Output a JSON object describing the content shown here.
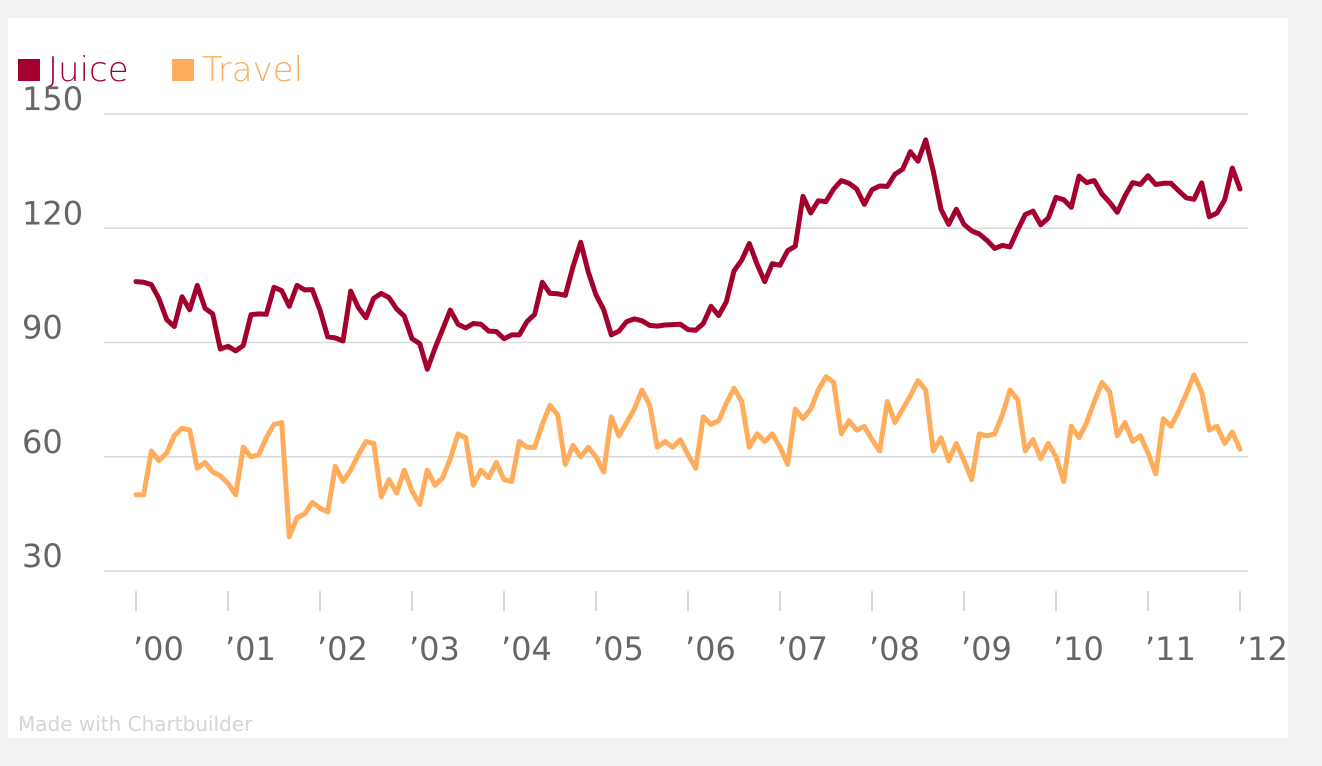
{
  "credit": "Made with Chartbuilder",
  "chart_data": {
    "type": "line",
    "x_start": "2000-01",
    "x_end": "2012-01",
    "ylim": [
      30,
      150
    ],
    "yticks": [
      30,
      60,
      90,
      120,
      150
    ],
    "xticks": [
      "’00",
      "’01",
      "’02",
      "’03",
      "’04",
      "’05",
      "’06",
      "’07",
      "’08",
      "’09",
      "’10",
      "’11",
      "’12"
    ],
    "legend": "top-left",
    "grid": true,
    "series": [
      {
        "name": "Juice",
        "color": "#a3002d",
        "values": [
          106,
          105.8,
          105.2,
          101.5,
          96,
          94.2,
          102,
          98.6,
          105,
          99,
          97.5,
          88.3,
          89,
          87.8,
          89.2,
          97.3,
          97.5,
          97.4,
          104.5,
          103.6,
          99.5,
          105,
          103.8,
          103.9,
          98.5,
          91.5,
          91.2,
          90.4,
          103.5,
          99.2,
          96.5,
          101.6,
          102.9,
          101.8,
          98.8,
          96.9,
          91,
          89.7,
          83,
          88.5,
          93.5,
          98.5,
          94.8,
          93.8,
          95,
          94.8,
          93,
          92.9,
          91,
          92,
          92,
          95.5,
          97.4,
          105.8,
          102.9,
          102.8,
          102.4,
          109.9,
          116.3,
          108.5,
          102.5,
          98.6,
          92,
          93,
          95.5,
          96.2,
          95.7,
          94.5,
          94.3,
          94.6,
          94.7,
          94.8,
          93.4,
          93.2,
          95,
          99.5,
          97.1,
          100.7,
          108.8,
          111.6,
          116,
          110.6,
          106,
          110.7,
          110.3,
          114.1,
          115.3,
          128.4,
          124,
          127.2,
          127,
          130.3,
          132.5,
          131.8,
          130.3,
          126.3,
          130.1,
          131.1,
          131,
          134.2,
          135.5,
          140.1,
          137.6,
          143.2,
          135,
          125,
          121,
          125,
          121,
          119.3,
          118.5,
          116.8,
          114.7,
          115.5,
          115.1,
          119.6,
          123.6,
          124.5,
          120.9,
          122.7,
          128.1,
          127.5,
          125.5,
          133.7,
          132,
          132.5,
          129,
          126.8,
          124.2,
          128.5,
          132,
          131.5,
          133.8,
          131.5,
          131.8,
          131.8,
          129.8,
          128,
          127.6,
          131.9,
          123,
          124,
          127.5,
          135.8,
          130.3
        ]
      },
      {
        "name": "Travel",
        "color": "#ffad5c",
        "values": [
          50,
          50,
          61.5,
          59,
          61,
          65.5,
          67.5,
          67,
          57,
          58.5,
          56,
          55,
          53,
          50,
          62.5,
          60,
          60.5,
          65,
          68.5,
          69,
          39,
          44,
          45,
          48,
          46.5,
          45.5,
          57.5,
          53.5,
          56.5,
          60.5,
          64,
          63.5,
          49.5,
          54,
          50.5,
          56.5,
          51,
          47.5,
          56.5,
          52.5,
          54.5,
          59.5,
          66,
          65,
          52.5,
          56.5,
          54.5,
          58.5,
          54,
          53.5,
          64,
          62.5,
          62.5,
          68.5,
          73.5,
          71,
          58,
          63,
          60,
          62.5,
          60,
          56,
          70.5,
          65.5,
          69,
          72.5,
          77.5,
          73.5,
          62.5,
          64,
          62.5,
          64.5,
          60.5,
          57,
          70.5,
          68.5,
          69.5,
          74,
          78,
          74.5,
          62.5,
          66,
          64,
          66,
          62.5,
          58,
          72.5,
          70,
          72.5,
          77.5,
          81,
          79.5,
          66,
          69.5,
          67,
          68,
          64.5,
          61.5,
          74.5,
          69,
          72.5,
          76,
          80,
          77.5,
          61.5,
          65,
          59,
          63.5,
          59,
          54,
          66,
          65.5,
          66,
          71,
          77.5,
          75,
          61.5,
          64.5,
          59.5,
          63.5,
          60,
          53.5,
          68,
          65,
          69,
          74.5,
          79.5,
          77,
          65.5,
          69,
          64,
          65.5,
          61,
          55.5,
          70,
          68,
          72,
          76.5,
          81.5,
          77,
          67,
          68,
          63.5,
          66.5,
          62
        ]
      }
    ]
  }
}
